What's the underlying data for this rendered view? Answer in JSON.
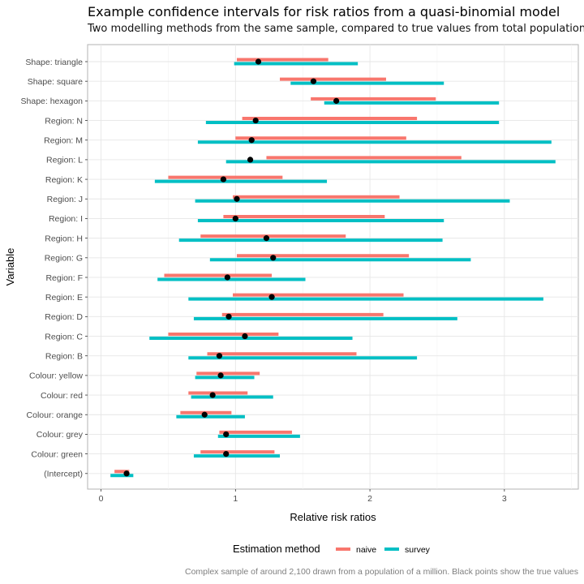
{
  "chart_data": {
    "type": "interval",
    "title": "Example confidence intervals for risk ratios from a quasi-binomial model",
    "subtitle": "Two modelling methods from the same sample, compared to true values from total population.",
    "xlabel": "Relative risk ratios",
    "ylabel": "Variable",
    "caption": "Complex sample of around 2,100 drawn from a population of a million.  Black points show the true values",
    "xlim": [
      -0.1,
      3.55
    ],
    "x_ticks": [
      0,
      1,
      2,
      3
    ],
    "grid": true,
    "legend": {
      "title": "Estimation method",
      "position": "bottom",
      "entries": [
        {
          "name": "naive",
          "color": "#F8766D"
        },
        {
          "name": "survey",
          "color": "#00BFC4"
        }
      ]
    },
    "categories": [
      "Shape: triangle",
      "Shape: square",
      "Shape: hexagon",
      "Region: N",
      "Region: M",
      "Region: L",
      "Region: K",
      "Region: J",
      "Region: I",
      "Region: H",
      "Region: G",
      "Region: F",
      "Region: E",
      "Region: D",
      "Region: C",
      "Region: B",
      "Colour: yellow",
      "Colour: red",
      "Colour: orange",
      "Colour: grey",
      "Colour: green",
      "(Intercept)"
    ],
    "series": [
      {
        "name": "naive",
        "color": "#F8766D",
        "lower": [
          1.01,
          1.33,
          1.56,
          1.05,
          1.0,
          1.23,
          0.5,
          0.98,
          0.91,
          0.74,
          1.01,
          0.47,
          0.98,
          0.9,
          0.5,
          0.79,
          0.71,
          0.65,
          0.59,
          0.88,
          0.74,
          0.1
        ],
        "upper": [
          1.69,
          2.12,
          2.49,
          2.35,
          2.27,
          2.68,
          1.35,
          2.22,
          2.11,
          1.82,
          2.29,
          1.27,
          2.25,
          2.1,
          1.32,
          1.9,
          1.18,
          1.09,
          0.97,
          1.42,
          1.29,
          0.21
        ]
      },
      {
        "name": "survey",
        "color": "#00BFC4",
        "lower": [
          0.99,
          1.41,
          1.66,
          0.78,
          0.72,
          0.93,
          0.4,
          0.7,
          0.72,
          0.58,
          0.81,
          0.42,
          0.65,
          0.69,
          0.36,
          0.65,
          0.7,
          0.67,
          0.56,
          0.87,
          0.69,
          0.07
        ],
        "upper": [
          1.91,
          2.55,
          2.96,
          2.96,
          3.35,
          3.38,
          1.68,
          3.04,
          2.55,
          2.54,
          2.75,
          1.52,
          3.29,
          2.65,
          1.87,
          2.35,
          1.14,
          1.28,
          1.07,
          1.48,
          1.33,
          0.24
        ]
      }
    ],
    "true_values": [
      1.17,
      1.58,
      1.75,
      1.15,
      1.12,
      1.11,
      0.91,
      1.01,
      1.0,
      1.23,
      1.28,
      0.94,
      1.27,
      0.95,
      1.07,
      0.88,
      0.89,
      0.83,
      0.77,
      0.93,
      0.93,
      0.19
    ]
  }
}
